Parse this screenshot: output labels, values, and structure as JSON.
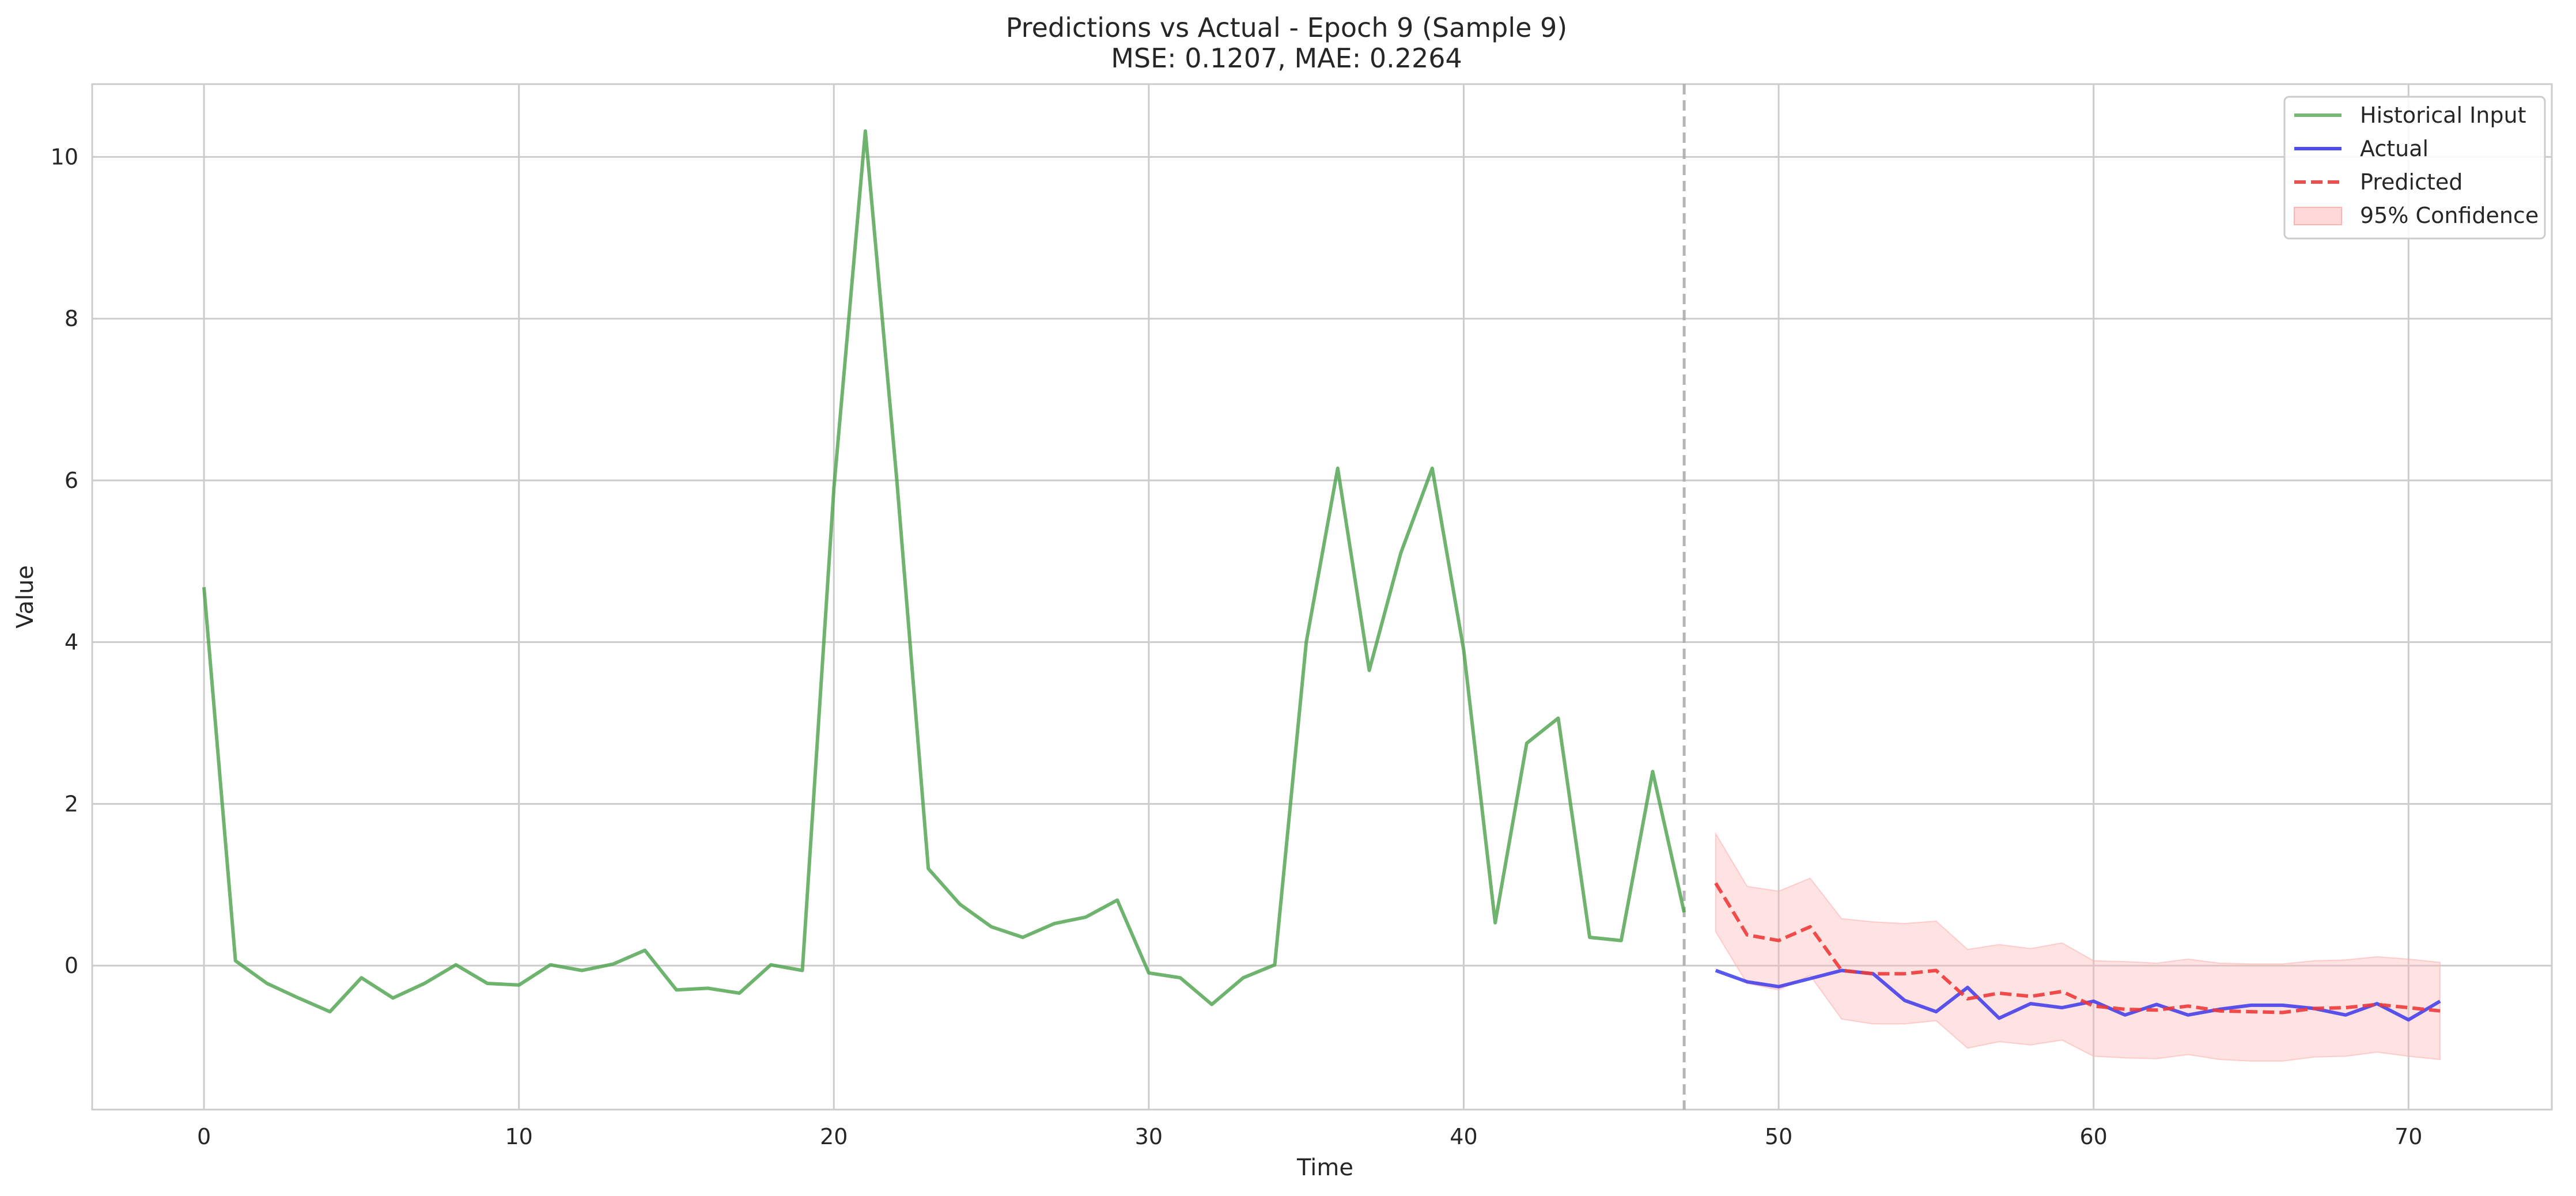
{
  "chart_data": {
    "type": "line",
    "title": "Predictions vs Actual - Epoch 9 (Sample 9)",
    "subtitle": "MSE: 0.1207, MAE: 0.2264",
    "xlabel": "Time",
    "ylabel": "Value",
    "xlim": [
      -3.55,
      74.55
    ],
    "ylim": [
      -1.78,
      10.9
    ],
    "xticks": [
      0,
      10,
      20,
      30,
      40,
      50,
      60,
      70
    ],
    "yticks": [
      0,
      2,
      4,
      6,
      8,
      10
    ],
    "grid": true,
    "legend_position": "top-right",
    "forecast_start_marker": 47,
    "series": [
      {
        "name": "Historical Input",
        "color": "#4aa04a",
        "style": "solid",
        "x": [
          0,
          1,
          2,
          3,
          4,
          5,
          6,
          7,
          8,
          9,
          10,
          11,
          12,
          13,
          14,
          15,
          16,
          17,
          18,
          19,
          20,
          21,
          22,
          23,
          24,
          25,
          26,
          27,
          28,
          29,
          30,
          31,
          32,
          33,
          34,
          35,
          36,
          37,
          38,
          39,
          40,
          41,
          42,
          43,
          44,
          45,
          46,
          47
        ],
        "values": [
          4.68,
          0.06,
          -0.22,
          -0.4,
          -0.57,
          -0.15,
          -0.4,
          -0.22,
          0.01,
          -0.22,
          -0.24,
          0.01,
          -0.06,
          0.02,
          0.19,
          -0.3,
          -0.28,
          -0.34,
          0.01,
          -0.06,
          5.9,
          10.32,
          6.0,
          1.2,
          0.76,
          0.48,
          0.35,
          0.52,
          0.6,
          0.81,
          -0.09,
          -0.15,
          -0.48,
          -0.15,
          0.01,
          4.0,
          6.15,
          3.65,
          5.1,
          6.15,
          3.9,
          0.53,
          2.75,
          3.06,
          0.35,
          0.31,
          2.4,
          0.66
        ]
      },
      {
        "name": "Actual",
        "color": "#2e2eec",
        "style": "solid",
        "x": [
          48,
          49,
          50,
          51,
          52,
          53,
          54,
          55,
          56,
          57,
          58,
          59,
          60,
          61,
          62,
          63,
          64,
          65,
          66,
          67,
          68,
          69,
          70,
          71
        ],
        "values": [
          -0.06,
          -0.2,
          -0.26,
          -0.16,
          -0.06,
          -0.1,
          -0.43,
          -0.57,
          -0.27,
          -0.65,
          -0.47,
          -0.52,
          -0.44,
          -0.61,
          -0.48,
          -0.61,
          -0.54,
          -0.49,
          -0.49,
          -0.53,
          -0.61,
          -0.47,
          -0.67,
          -0.44
        ]
      },
      {
        "name": "Predicted",
        "color": "#ee3a3a",
        "style": "dashed",
        "x": [
          48,
          49,
          50,
          51,
          52,
          53,
          54,
          55,
          56,
          57,
          58,
          59,
          60,
          61,
          62,
          63,
          64,
          65,
          66,
          67,
          68,
          69,
          70,
          71
        ],
        "values": [
          1.02,
          0.38,
          0.31,
          0.48,
          -0.06,
          -0.1,
          -0.1,
          -0.06,
          -0.41,
          -0.34,
          -0.38,
          -0.32,
          -0.5,
          -0.54,
          -0.55,
          -0.5,
          -0.56,
          -0.57,
          -0.58,
          -0.53,
          -0.52,
          -0.48,
          -0.52,
          -0.56
        ]
      },
      {
        "name": "95% Confidence",
        "color": "#ffb3b3",
        "style": "band",
        "x": [
          48,
          49,
          50,
          51,
          52,
          53,
          54,
          55,
          56,
          57,
          58,
          59,
          60,
          61,
          62,
          63,
          64,
          65,
          66,
          67,
          68,
          69,
          70,
          71
        ],
        "upper": [
          1.63,
          0.98,
          0.92,
          1.08,
          0.58,
          0.54,
          0.52,
          0.55,
          0.2,
          0.26,
          0.21,
          0.28,
          0.06,
          0.05,
          0.03,
          0.08,
          0.03,
          0.02,
          0.02,
          0.06,
          0.07,
          0.11,
          0.08,
          0.04
        ],
        "lower": [
          0.42,
          -0.22,
          -0.3,
          -0.12,
          -0.66,
          -0.72,
          -0.72,
          -0.68,
          -1.02,
          -0.94,
          -0.98,
          -0.92,
          -1.12,
          -1.14,
          -1.15,
          -1.1,
          -1.16,
          -1.18,
          -1.18,
          -1.13,
          -1.12,
          -1.07,
          -1.12,
          -1.16
        ]
      }
    ]
  }
}
